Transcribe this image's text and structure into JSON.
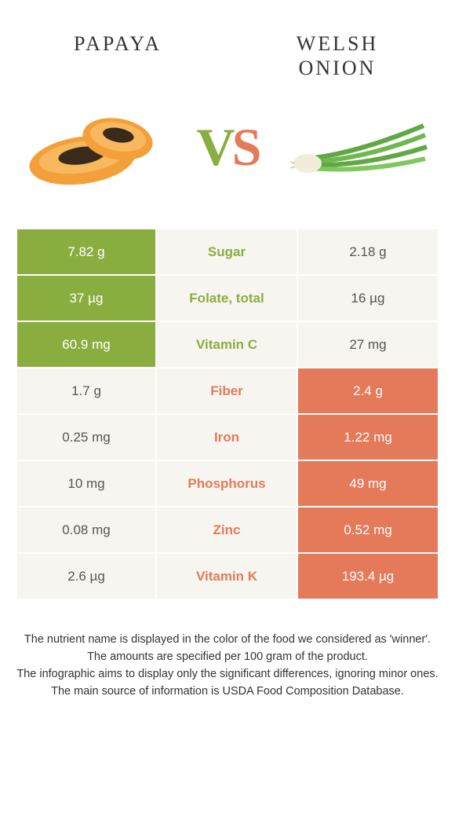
{
  "header": {
    "left": "Papaya",
    "right": "Welsh onion"
  },
  "vs": {
    "v": "V",
    "s": "S"
  },
  "colors": {
    "green": "#8aad3f",
    "orange": "#e47a5a",
    "neutral_bg": "#f7f5f0"
  },
  "rows": [
    {
      "left": "7.82 g",
      "label": "Sugar",
      "right": "2.18 g",
      "winner": "left"
    },
    {
      "left": "37 µg",
      "label": "Folate, total",
      "right": "16 µg",
      "winner": "left"
    },
    {
      "left": "60.9 mg",
      "label": "Vitamin C",
      "right": "27 mg",
      "winner": "left"
    },
    {
      "left": "1.7 g",
      "label": "Fiber",
      "right": "2.4 g",
      "winner": "right"
    },
    {
      "left": "0.25 mg",
      "label": "Iron",
      "right": "1.22 mg",
      "winner": "right"
    },
    {
      "left": "10 mg",
      "label": "Phosphorus",
      "right": "49 mg",
      "winner": "right"
    },
    {
      "left": "0.08 mg",
      "label": "Zinc",
      "right": "0.52 mg",
      "winner": "right"
    },
    {
      "left": "2.6 µg",
      "label": "Vitamin K",
      "right": "193.4 µg",
      "winner": "right"
    }
  ],
  "footer": {
    "line1": "The nutrient name is displayed in the color of the food we considered as 'winner'.",
    "line2": "The amounts are specified per 100 gram of the product.",
    "line3": "The infographic aims to display only the significant differences, ignoring minor ones.",
    "line4": "The main source of information is USDA Food Composition Database."
  }
}
